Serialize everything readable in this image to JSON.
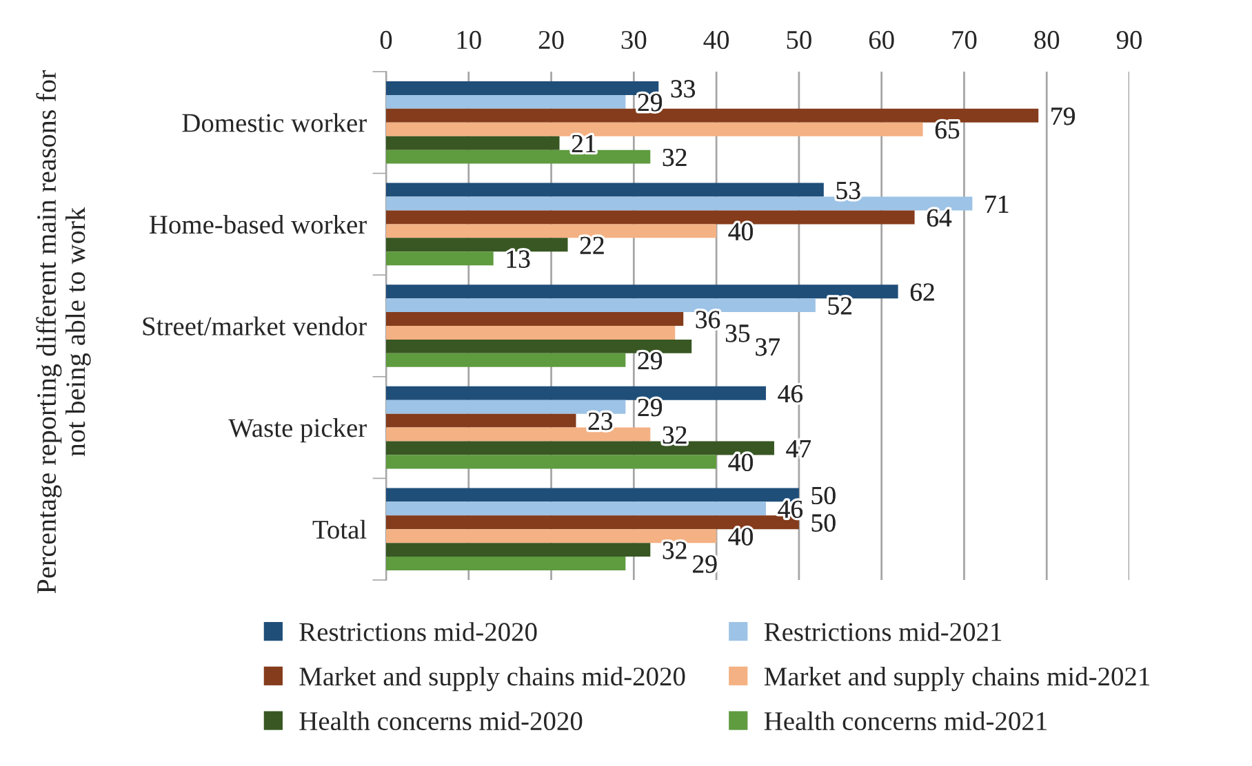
{
  "chart_data": {
    "type": "bar",
    "orientation": "horizontal",
    "ylabel": "Percentage reporting different main reasons for not being able to work",
    "categories": [
      "Domestic worker",
      "Home-based worker",
      "Street/market vendor",
      "Waste picker",
      "Total"
    ],
    "series": [
      {
        "name": "Restrictions mid-2020",
        "color": "#1f4e79",
        "values": [
          33,
          53,
          62,
          46,
          50
        ]
      },
      {
        "name": "Restrictions mid-2021",
        "color": "#9dc3e6",
        "values": [
          29,
          71,
          52,
          29,
          46
        ]
      },
      {
        "name": "Market and supply chains mid-2020",
        "color": "#843c1c",
        "values": [
          79,
          64,
          36,
          23,
          50
        ]
      },
      {
        "name": "Market and supply chains mid-2021",
        "color": "#f4b183",
        "values": [
          65,
          40,
          35,
          32,
          40
        ]
      },
      {
        "name": "Health concerns mid-2020",
        "color": "#385723",
        "values": [
          21,
          22,
          37,
          47,
          32
        ]
      },
      {
        "name": "Health concerns mid-2021",
        "color": "#5f9b3f",
        "values": [
          32,
          13,
          29,
          40,
          29
        ]
      }
    ],
    "xlim": [
      0,
      90
    ],
    "xticks": [
      0,
      10,
      20,
      30,
      40,
      50,
      60,
      70,
      80,
      90
    ],
    "grid": "x",
    "legend": "bottom",
    "data_labels": true
  }
}
